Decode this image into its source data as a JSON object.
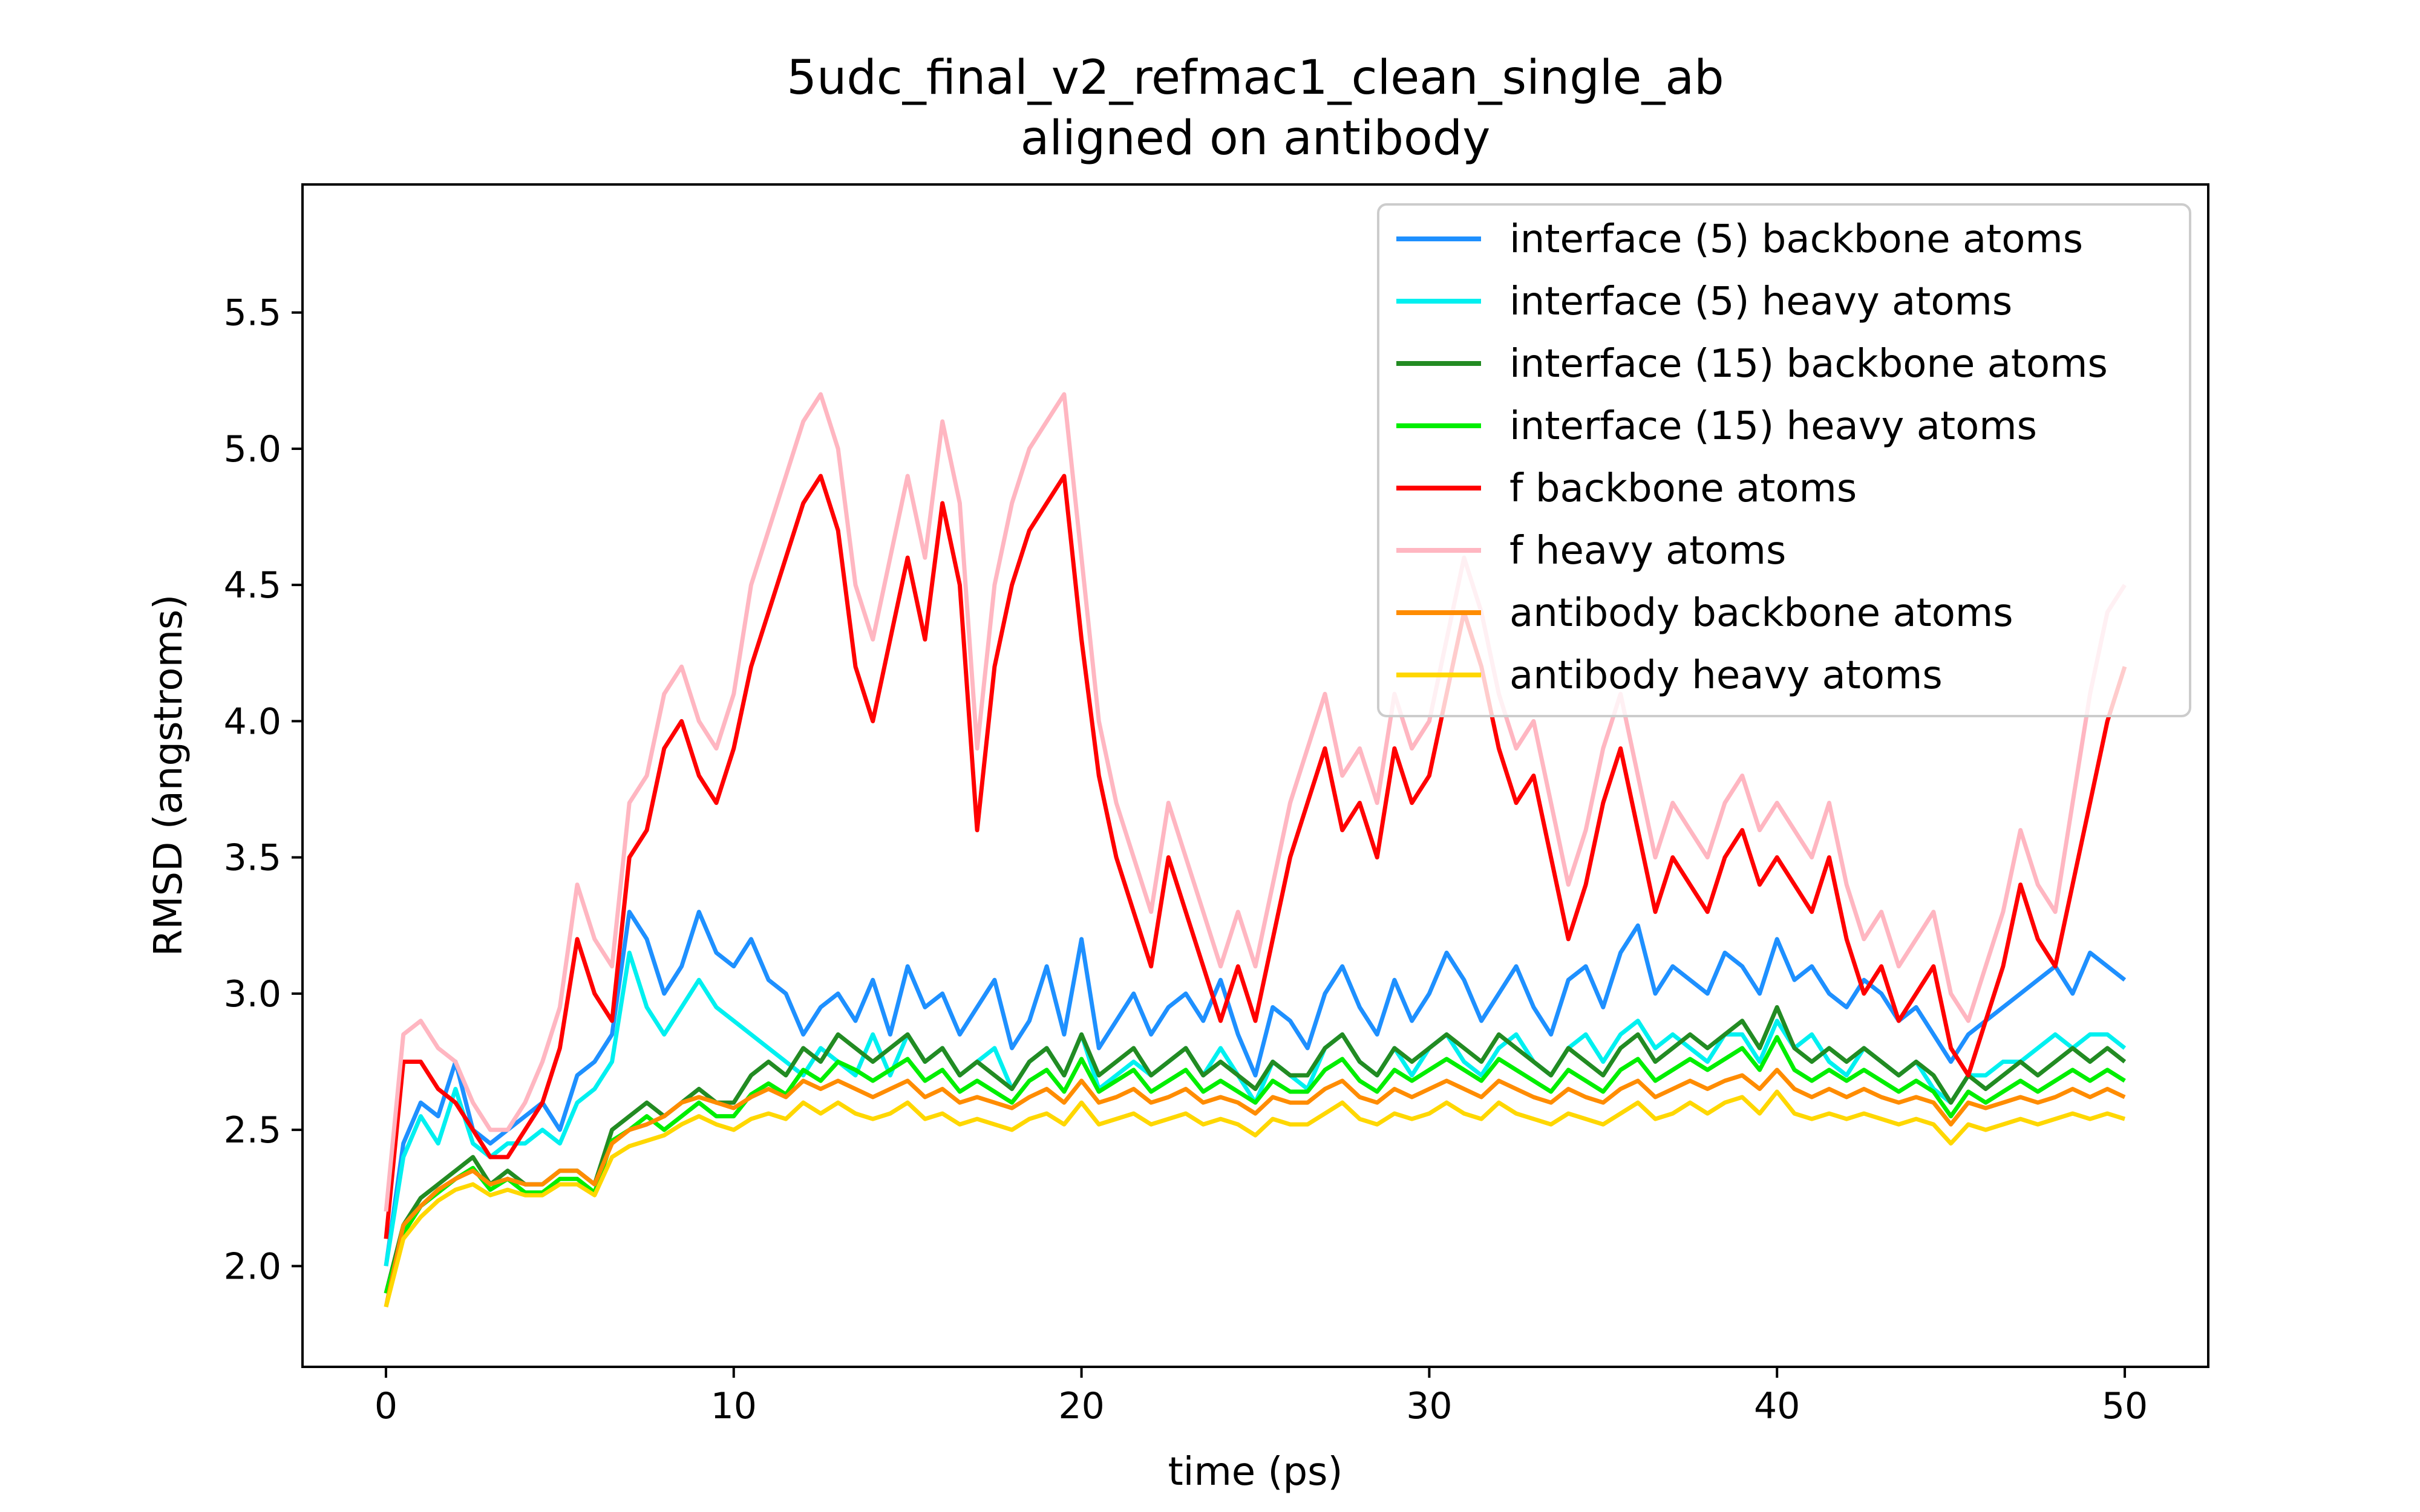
{
  "chart_data": {
    "type": "line",
    "title": "5udc_final_v2_refmac1_clean_single_ab",
    "subtitle": "aligned on antibody",
    "xlabel": "time (ps)",
    "ylabel": "RMSD (angstroms)",
    "xlim": [
      -2.4,
      52.4
    ],
    "ylim": [
      1.63,
      5.97
    ],
    "xticks": [
      "0",
      "10",
      "20",
      "30",
      "40",
      "50"
    ],
    "yticks": [
      "2.0",
      "2.5",
      "3.0",
      "3.5",
      "4.0",
      "4.5",
      "5.0",
      "5.5"
    ],
    "grid": false,
    "legend_position": "top-right",
    "x": [
      0,
      0.5,
      1,
      1.5,
      2,
      2.5,
      3,
      3.5,
      4,
      4.5,
      5,
      5.5,
      6,
      6.5,
      7,
      7.5,
      8,
      8.5,
      9,
      9.5,
      10,
      10.5,
      11,
      11.5,
      12,
      12.5,
      13,
      13.5,
      14,
      14.5,
      15,
      15.5,
      16,
      16.5,
      17,
      17.5,
      18,
      18.5,
      19,
      19.5,
      20,
      20.5,
      21,
      21.5,
      22,
      22.5,
      23,
      23.5,
      24,
      24.5,
      25,
      25.5,
      26,
      26.5,
      27,
      27.5,
      28,
      28.5,
      29,
      29.5,
      30,
      30.5,
      31,
      31.5,
      32,
      32.5,
      33,
      33.5,
      34,
      34.5,
      35,
      35.5,
      36,
      36.5,
      37,
      37.5,
      38,
      38.5,
      39,
      39.5,
      40,
      40.5,
      41,
      41.5,
      42,
      42.5,
      43,
      43.5,
      44,
      44.5,
      45,
      45.5,
      46,
      46.5,
      47,
      47.5,
      48,
      48.5,
      49,
      49.5,
      50
    ],
    "series": [
      {
        "name": "interface (5) backbone atoms",
        "color": "#1e90ff",
        "values": [
          2.0,
          2.45,
          2.6,
          2.55,
          2.75,
          2.5,
          2.45,
          2.5,
          2.55,
          2.6,
          2.5,
          2.7,
          2.75,
          2.85,
          3.3,
          3.2,
          3.0,
          3.1,
          3.3,
          3.15,
          3.1,
          3.2,
          3.05,
          3.0,
          2.85,
          2.95,
          3.0,
          2.9,
          3.05,
          2.85,
          3.1,
          2.95,
          3.0,
          2.85,
          2.95,
          3.05,
          2.8,
          2.9,
          3.1,
          2.85,
          3.2,
          2.8,
          2.9,
          3.0,
          2.85,
          2.95,
          3.0,
          2.9,
          3.05,
          2.85,
          2.7,
          2.95,
          2.9,
          2.8,
          3.0,
          3.1,
          2.95,
          2.85,
          3.05,
          2.9,
          3.0,
          3.15,
          3.05,
          2.9,
          3.0,
          3.1,
          2.95,
          2.85,
          3.05,
          3.1,
          2.95,
          3.15,
          3.25,
          3.0,
          3.1,
          3.05,
          3.0,
          3.15,
          3.1,
          3.0,
          3.2,
          3.05,
          3.1,
          3.0,
          2.95,
          3.05,
          3.0,
          2.9,
          2.95,
          2.85,
          2.75,
          2.85,
          2.9,
          2.95,
          3.0,
          3.05,
          3.1,
          3.0,
          3.15,
          3.1,
          3.05
        ]
      },
      {
        "name": "interface (5) heavy atoms",
        "color": "#00f0f0",
        "values": [
          2.0,
          2.4,
          2.55,
          2.45,
          2.65,
          2.45,
          2.4,
          2.45,
          2.45,
          2.5,
          2.45,
          2.6,
          2.65,
          2.75,
          3.15,
          2.95,
          2.85,
          2.95,
          3.05,
          2.95,
          2.9,
          2.85,
          2.8,
          2.75,
          2.7,
          2.8,
          2.75,
          2.7,
          2.85,
          2.7,
          2.85,
          2.75,
          2.8,
          2.7,
          2.75,
          2.8,
          2.65,
          2.75,
          2.8,
          2.7,
          2.85,
          2.65,
          2.7,
          2.75,
          2.7,
          2.75,
          2.8,
          2.7,
          2.8,
          2.7,
          2.6,
          2.75,
          2.7,
          2.65,
          2.8,
          2.85,
          2.75,
          2.7,
          2.8,
          2.7,
          2.8,
          2.85,
          2.75,
          2.7,
          2.8,
          2.85,
          2.75,
          2.7,
          2.8,
          2.85,
          2.75,
          2.85,
          2.9,
          2.8,
          2.85,
          2.8,
          2.75,
          2.85,
          2.85,
          2.75,
          2.9,
          2.8,
          2.85,
          2.75,
          2.7,
          2.8,
          2.75,
          2.7,
          2.75,
          2.65,
          2.6,
          2.7,
          2.7,
          2.75,
          2.75,
          2.8,
          2.85,
          2.8,
          2.85,
          2.85,
          2.8
        ]
      },
      {
        "name": "interface (15) backbone atoms",
        "color": "#228b22",
        "values": [
          1.9,
          2.15,
          2.25,
          2.3,
          2.35,
          2.4,
          2.3,
          2.35,
          2.3,
          2.3,
          2.35,
          2.35,
          2.3,
          2.5,
          2.55,
          2.6,
          2.55,
          2.6,
          2.65,
          2.6,
          2.6,
          2.7,
          2.75,
          2.7,
          2.8,
          2.75,
          2.85,
          2.8,
          2.75,
          2.8,
          2.85,
          2.75,
          2.8,
          2.7,
          2.75,
          2.7,
          2.65,
          2.75,
          2.8,
          2.7,
          2.85,
          2.7,
          2.75,
          2.8,
          2.7,
          2.75,
          2.8,
          2.7,
          2.75,
          2.7,
          2.65,
          2.75,
          2.7,
          2.7,
          2.8,
          2.85,
          2.75,
          2.7,
          2.8,
          2.75,
          2.8,
          2.85,
          2.8,
          2.75,
          2.85,
          2.8,
          2.75,
          2.7,
          2.8,
          2.75,
          2.7,
          2.8,
          2.85,
          2.75,
          2.8,
          2.85,
          2.8,
          2.85,
          2.9,
          2.8,
          2.95,
          2.8,
          2.75,
          2.8,
          2.75,
          2.8,
          2.75,
          2.7,
          2.75,
          2.7,
          2.6,
          2.7,
          2.65,
          2.7,
          2.75,
          2.7,
          2.75,
          2.8,
          2.75,
          2.8,
          2.75
        ]
      },
      {
        "name": "interface (15) heavy atoms",
        "color": "#00ee00",
        "values": [
          1.9,
          2.12,
          2.22,
          2.27,
          2.32,
          2.36,
          2.28,
          2.32,
          2.27,
          2.27,
          2.32,
          2.32,
          2.27,
          2.46,
          2.5,
          2.55,
          2.5,
          2.55,
          2.6,
          2.55,
          2.55,
          2.63,
          2.67,
          2.63,
          2.72,
          2.68,
          2.75,
          2.72,
          2.68,
          2.72,
          2.76,
          2.68,
          2.72,
          2.64,
          2.68,
          2.64,
          2.6,
          2.68,
          2.72,
          2.64,
          2.76,
          2.64,
          2.68,
          2.72,
          2.64,
          2.68,
          2.72,
          2.64,
          2.68,
          2.64,
          2.6,
          2.68,
          2.64,
          2.64,
          2.72,
          2.76,
          2.68,
          2.64,
          2.72,
          2.68,
          2.72,
          2.76,
          2.72,
          2.68,
          2.76,
          2.72,
          2.68,
          2.64,
          2.72,
          2.68,
          2.64,
          2.72,
          2.76,
          2.68,
          2.72,
          2.76,
          2.72,
          2.76,
          2.8,
          2.72,
          2.84,
          2.72,
          2.68,
          2.72,
          2.68,
          2.72,
          2.68,
          2.64,
          2.68,
          2.64,
          2.55,
          2.64,
          2.6,
          2.64,
          2.68,
          2.64,
          2.68,
          2.72,
          2.68,
          2.72,
          2.68
        ]
      },
      {
        "name": "f backbone atoms",
        "color": "#ff0000",
        "values": [
          2.1,
          2.75,
          2.75,
          2.65,
          2.6,
          2.5,
          2.4,
          2.4,
          2.5,
          2.6,
          2.8,
          3.2,
          3.0,
          2.9,
          3.5,
          3.6,
          3.9,
          4.0,
          3.8,
          3.7,
          3.9,
          4.2,
          4.4,
          4.6,
          4.8,
          4.9,
          4.7,
          4.2,
          4.0,
          4.3,
          4.6,
          4.3,
          4.8,
          4.5,
          3.6,
          4.2,
          4.5,
          4.7,
          4.8,
          4.9,
          4.3,
          3.8,
          3.5,
          3.3,
          3.1,
          3.5,
          3.3,
          3.1,
          2.9,
          3.1,
          2.9,
          3.2,
          3.5,
          3.7,
          3.9,
          3.6,
          3.7,
          3.5,
          3.9,
          3.7,
          3.8,
          4.1,
          4.4,
          4.2,
          3.9,
          3.7,
          3.8,
          3.5,
          3.2,
          3.4,
          3.7,
          3.9,
          3.6,
          3.3,
          3.5,
          3.4,
          3.3,
          3.5,
          3.6,
          3.4,
          3.5,
          3.4,
          3.3,
          3.5,
          3.2,
          3.0,
          3.1,
          2.9,
          3.0,
          3.1,
          2.8,
          2.7,
          2.9,
          3.1,
          3.4,
          3.2,
          3.1,
          3.4,
          3.7,
          4.0,
          4.2
        ]
      },
      {
        "name": "f heavy atoms",
        "color": "#ffb6c1",
        "values": [
          2.2,
          2.85,
          2.9,
          2.8,
          2.75,
          2.6,
          2.5,
          2.5,
          2.6,
          2.75,
          2.95,
          3.4,
          3.2,
          3.1,
          3.7,
          3.8,
          4.1,
          4.2,
          4.0,
          3.9,
          4.1,
          4.5,
          4.7,
          4.9,
          5.1,
          5.2,
          5.0,
          4.5,
          4.3,
          4.6,
          4.9,
          4.6,
          5.1,
          4.8,
          3.9,
          4.5,
          4.8,
          5.0,
          5.1,
          5.2,
          4.6,
          4.0,
          3.7,
          3.5,
          3.3,
          3.7,
          3.5,
          3.3,
          3.1,
          3.3,
          3.1,
          3.4,
          3.7,
          3.9,
          4.1,
          3.8,
          3.9,
          3.7,
          4.1,
          3.9,
          4.0,
          4.3,
          4.6,
          4.4,
          4.1,
          3.9,
          4.0,
          3.7,
          3.4,
          3.6,
          3.9,
          4.1,
          3.8,
          3.5,
          3.7,
          3.6,
          3.5,
          3.7,
          3.8,
          3.6,
          3.7,
          3.6,
          3.5,
          3.7,
          3.4,
          3.2,
          3.3,
          3.1,
          3.2,
          3.3,
          3.0,
          2.9,
          3.1,
          3.3,
          3.6,
          3.4,
          3.3,
          3.7,
          4.1,
          4.4,
          4.5
        ]
      },
      {
        "name": "antibody backbone atoms",
        "color": "#ff8c00",
        "values": [
          1.85,
          2.15,
          2.22,
          2.28,
          2.32,
          2.35,
          2.3,
          2.32,
          2.3,
          2.3,
          2.35,
          2.35,
          2.3,
          2.45,
          2.5,
          2.52,
          2.55,
          2.6,
          2.62,
          2.6,
          2.58,
          2.62,
          2.65,
          2.62,
          2.68,
          2.65,
          2.68,
          2.65,
          2.62,
          2.65,
          2.68,
          2.62,
          2.65,
          2.6,
          2.62,
          2.6,
          2.58,
          2.62,
          2.65,
          2.6,
          2.68,
          2.6,
          2.62,
          2.65,
          2.6,
          2.62,
          2.65,
          2.6,
          2.62,
          2.6,
          2.56,
          2.62,
          2.6,
          2.6,
          2.65,
          2.68,
          2.62,
          2.6,
          2.65,
          2.62,
          2.65,
          2.68,
          2.65,
          2.62,
          2.68,
          2.65,
          2.62,
          2.6,
          2.65,
          2.62,
          2.6,
          2.65,
          2.68,
          2.62,
          2.65,
          2.68,
          2.65,
          2.68,
          2.7,
          2.65,
          2.72,
          2.65,
          2.62,
          2.65,
          2.62,
          2.65,
          2.62,
          2.6,
          2.62,
          2.6,
          2.52,
          2.6,
          2.58,
          2.6,
          2.62,
          2.6,
          2.62,
          2.65,
          2.62,
          2.65,
          2.62
        ]
      },
      {
        "name": "antibody heavy atoms",
        "color": "#ffd700",
        "values": [
          1.85,
          2.1,
          2.18,
          2.24,
          2.28,
          2.3,
          2.26,
          2.28,
          2.26,
          2.26,
          2.3,
          2.3,
          2.26,
          2.4,
          2.44,
          2.46,
          2.48,
          2.52,
          2.55,
          2.52,
          2.5,
          2.54,
          2.56,
          2.54,
          2.6,
          2.56,
          2.6,
          2.56,
          2.54,
          2.56,
          2.6,
          2.54,
          2.56,
          2.52,
          2.54,
          2.52,
          2.5,
          2.54,
          2.56,
          2.52,
          2.6,
          2.52,
          2.54,
          2.56,
          2.52,
          2.54,
          2.56,
          2.52,
          2.54,
          2.52,
          2.48,
          2.54,
          2.52,
          2.52,
          2.56,
          2.6,
          2.54,
          2.52,
          2.56,
          2.54,
          2.56,
          2.6,
          2.56,
          2.54,
          2.6,
          2.56,
          2.54,
          2.52,
          2.56,
          2.54,
          2.52,
          2.56,
          2.6,
          2.54,
          2.56,
          2.6,
          2.56,
          2.6,
          2.62,
          2.56,
          2.64,
          2.56,
          2.54,
          2.56,
          2.54,
          2.56,
          2.54,
          2.52,
          2.54,
          2.52,
          2.45,
          2.52,
          2.5,
          2.52,
          2.54,
          2.52,
          2.54,
          2.56,
          2.54,
          2.56,
          2.54
        ]
      }
    ]
  }
}
